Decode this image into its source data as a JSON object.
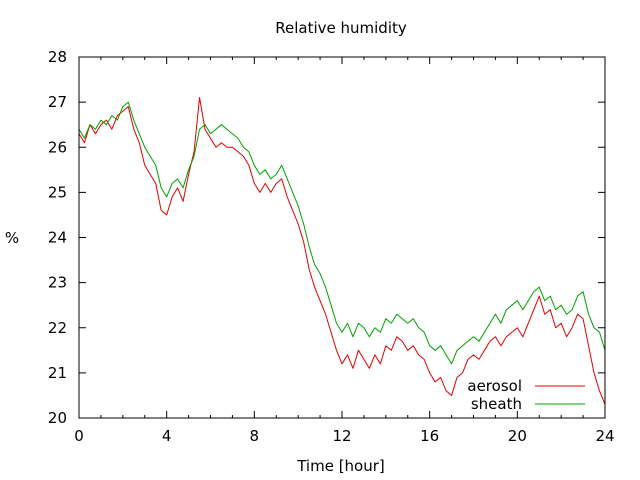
{
  "chart_data": {
    "type": "line",
    "title": "Relative humidity",
    "xlabel": "Time [hour]",
    "ylabel": "%",
    "xlim": [
      0,
      24
    ],
    "ylim": [
      20,
      28
    ],
    "xticks": [
      0,
      4,
      8,
      12,
      16,
      20,
      24
    ],
    "yticks": [
      20,
      21,
      22,
      23,
      24,
      25,
      26,
      27,
      28
    ],
    "grid": false,
    "legend_position": "bottom-right",
    "series": [
      {
        "name": "aerosol",
        "color": "#e00000",
        "points": [
          [
            0.0,
            26.3
          ],
          [
            0.25,
            26.1
          ],
          [
            0.5,
            26.5
          ],
          [
            0.75,
            26.3
          ],
          [
            1.0,
            26.5
          ],
          [
            1.25,
            26.6
          ],
          [
            1.5,
            26.4
          ],
          [
            1.75,
            26.7
          ],
          [
            2.0,
            26.8
          ],
          [
            2.25,
            26.9
          ],
          [
            2.5,
            26.4
          ],
          [
            2.75,
            26.1
          ],
          [
            3.0,
            25.6
          ],
          [
            3.25,
            25.4
          ],
          [
            3.5,
            25.2
          ],
          [
            3.75,
            24.6
          ],
          [
            4.0,
            24.5
          ],
          [
            4.25,
            24.9
          ],
          [
            4.5,
            25.1
          ],
          [
            4.75,
            24.8
          ],
          [
            5.0,
            25.4
          ],
          [
            5.25,
            25.9
          ],
          [
            5.5,
            27.1
          ],
          [
            5.75,
            26.4
          ],
          [
            6.0,
            26.2
          ],
          [
            6.25,
            26.0
          ],
          [
            6.5,
            26.1
          ],
          [
            6.75,
            26.0
          ],
          [
            7.0,
            26.0
          ],
          [
            7.25,
            25.9
          ],
          [
            7.5,
            25.8
          ],
          [
            7.75,
            25.6
          ],
          [
            8.0,
            25.2
          ],
          [
            8.25,
            25.0
          ],
          [
            8.5,
            25.2
          ],
          [
            8.75,
            25.0
          ],
          [
            9.0,
            25.2
          ],
          [
            9.25,
            25.3
          ],
          [
            9.5,
            24.9
          ],
          [
            9.75,
            24.6
          ],
          [
            10.0,
            24.3
          ],
          [
            10.25,
            23.9
          ],
          [
            10.5,
            23.3
          ],
          [
            10.75,
            22.9
          ],
          [
            11.0,
            22.6
          ],
          [
            11.25,
            22.3
          ],
          [
            11.5,
            21.9
          ],
          [
            11.75,
            21.5
          ],
          [
            12.0,
            21.2
          ],
          [
            12.25,
            21.4
          ],
          [
            12.5,
            21.1
          ],
          [
            12.75,
            21.5
          ],
          [
            13.0,
            21.3
          ],
          [
            13.25,
            21.1
          ],
          [
            13.5,
            21.4
          ],
          [
            13.75,
            21.2
          ],
          [
            14.0,
            21.6
          ],
          [
            14.25,
            21.5
          ],
          [
            14.5,
            21.8
          ],
          [
            14.75,
            21.7
          ],
          [
            15.0,
            21.5
          ],
          [
            15.25,
            21.6
          ],
          [
            15.5,
            21.4
          ],
          [
            15.75,
            21.3
          ],
          [
            16.0,
            21.0
          ],
          [
            16.25,
            20.8
          ],
          [
            16.5,
            20.9
          ],
          [
            16.75,
            20.6
          ],
          [
            17.0,
            20.5
          ],
          [
            17.25,
            20.9
          ],
          [
            17.5,
            21.0
          ],
          [
            17.75,
            21.3
          ],
          [
            18.0,
            21.4
          ],
          [
            18.25,
            21.3
          ],
          [
            18.5,
            21.5
          ],
          [
            18.75,
            21.7
          ],
          [
            19.0,
            21.8
          ],
          [
            19.25,
            21.6
          ],
          [
            19.5,
            21.8
          ],
          [
            19.75,
            21.9
          ],
          [
            20.0,
            22.0
          ],
          [
            20.25,
            21.8
          ],
          [
            20.5,
            22.1
          ],
          [
            20.75,
            22.4
          ],
          [
            21.0,
            22.7
          ],
          [
            21.25,
            22.3
          ],
          [
            21.5,
            22.4
          ],
          [
            21.75,
            22.0
          ],
          [
            22.0,
            22.1
          ],
          [
            22.25,
            21.8
          ],
          [
            22.5,
            22.0
          ],
          [
            22.75,
            22.3
          ],
          [
            23.0,
            22.2
          ],
          [
            23.25,
            21.6
          ],
          [
            23.5,
            21.0
          ],
          [
            23.75,
            20.6
          ],
          [
            24.0,
            20.3
          ]
        ]
      },
      {
        "name": "sheath",
        "color": "#00a000",
        "points": [
          [
            0.0,
            26.4
          ],
          [
            0.25,
            26.2
          ],
          [
            0.5,
            26.5
          ],
          [
            0.75,
            26.4
          ],
          [
            1.0,
            26.6
          ],
          [
            1.25,
            26.5
          ],
          [
            1.5,
            26.7
          ],
          [
            1.75,
            26.6
          ],
          [
            2.0,
            26.9
          ],
          [
            2.25,
            27.0
          ],
          [
            2.5,
            26.6
          ],
          [
            2.75,
            26.3
          ],
          [
            3.0,
            26.0
          ],
          [
            3.25,
            25.8
          ],
          [
            3.5,
            25.6
          ],
          [
            3.75,
            25.1
          ],
          [
            4.0,
            24.9
          ],
          [
            4.25,
            25.2
          ],
          [
            4.5,
            25.3
          ],
          [
            4.75,
            25.1
          ],
          [
            5.0,
            25.5
          ],
          [
            5.25,
            25.8
          ],
          [
            5.5,
            26.4
          ],
          [
            5.75,
            26.5
          ],
          [
            6.0,
            26.3
          ],
          [
            6.25,
            26.4
          ],
          [
            6.5,
            26.5
          ],
          [
            6.75,
            26.4
          ],
          [
            7.0,
            26.3
          ],
          [
            7.25,
            26.2
          ],
          [
            7.5,
            26.0
          ],
          [
            7.75,
            25.9
          ],
          [
            8.0,
            25.6
          ],
          [
            8.25,
            25.4
          ],
          [
            8.5,
            25.5
          ],
          [
            8.75,
            25.3
          ],
          [
            9.0,
            25.4
          ],
          [
            9.25,
            25.6
          ],
          [
            9.5,
            25.3
          ],
          [
            9.75,
            25.0
          ],
          [
            10.0,
            24.7
          ],
          [
            10.25,
            24.3
          ],
          [
            10.5,
            23.8
          ],
          [
            10.75,
            23.4
          ],
          [
            11.0,
            23.2
          ],
          [
            11.25,
            22.9
          ],
          [
            11.5,
            22.5
          ],
          [
            11.75,
            22.1
          ],
          [
            12.0,
            21.9
          ],
          [
            12.25,
            22.1
          ],
          [
            12.5,
            21.8
          ],
          [
            12.75,
            22.1
          ],
          [
            13.0,
            22.0
          ],
          [
            13.25,
            21.8
          ],
          [
            13.5,
            22.0
          ],
          [
            13.75,
            21.9
          ],
          [
            14.0,
            22.2
          ],
          [
            14.25,
            22.1
          ],
          [
            14.5,
            22.3
          ],
          [
            14.75,
            22.2
          ],
          [
            15.0,
            22.1
          ],
          [
            15.25,
            22.2
          ],
          [
            15.5,
            22.0
          ],
          [
            15.75,
            21.9
          ],
          [
            16.0,
            21.6
          ],
          [
            16.25,
            21.5
          ],
          [
            16.5,
            21.6
          ],
          [
            16.75,
            21.4
          ],
          [
            17.0,
            21.2
          ],
          [
            17.25,
            21.5
          ],
          [
            17.5,
            21.6
          ],
          [
            17.75,
            21.7
          ],
          [
            18.0,
            21.8
          ],
          [
            18.25,
            21.7
          ],
          [
            18.5,
            21.9
          ],
          [
            18.75,
            22.1
          ],
          [
            19.0,
            22.3
          ],
          [
            19.25,
            22.1
          ],
          [
            19.5,
            22.4
          ],
          [
            19.75,
            22.5
          ],
          [
            20.0,
            22.6
          ],
          [
            20.25,
            22.4
          ],
          [
            20.5,
            22.6
          ],
          [
            20.75,
            22.8
          ],
          [
            21.0,
            22.9
          ],
          [
            21.25,
            22.6
          ],
          [
            21.5,
            22.7
          ],
          [
            21.75,
            22.4
          ],
          [
            22.0,
            22.5
          ],
          [
            22.25,
            22.3
          ],
          [
            22.5,
            22.4
          ],
          [
            22.75,
            22.7
          ],
          [
            23.0,
            22.8
          ],
          [
            23.25,
            22.3
          ],
          [
            23.5,
            22.0
          ],
          [
            23.75,
            21.9
          ],
          [
            24.0,
            21.5
          ]
        ]
      }
    ]
  }
}
